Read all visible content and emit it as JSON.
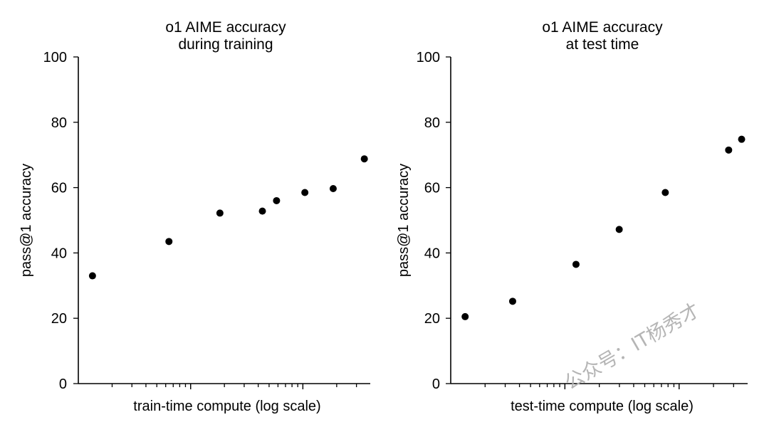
{
  "chart_data": [
    {
      "type": "scatter",
      "title_lines": [
        "o1 AIME accuracy",
        "during training"
      ],
      "xlabel": "train-time compute (log scale)",
      "ylabel": "pass@1 accuracy",
      "x_scale": "log",
      "ylim": [
        0,
        100
      ],
      "yticks": [
        0,
        20,
        40,
        60,
        80,
        100
      ],
      "x_tick_labels_shown": false,
      "grid": false,
      "series": [
        {
          "x": [
            0.05,
            0.32,
            0.5,
            0.65,
            0.7,
            0.8,
            0.9,
            1.01
          ],
          "y": [
            33,
            43.5,
            52.2,
            52.8,
            56,
            58.5,
            59.7,
            68.8
          ],
          "color": "#000000"
        }
      ]
    },
    {
      "type": "scatter",
      "title_lines": [
        "o1 AIME accuracy",
        "at test time"
      ],
      "xlabel": "test-time compute (log scale)",
      "ylabel": "pass@1 accuracy",
      "x_scale": "log",
      "ylim": [
        0,
        100
      ],
      "yticks": [
        0,
        20,
        40,
        60,
        80,
        100
      ],
      "x_tick_labels_shown": false,
      "grid": false,
      "series": [
        {
          "x": [
            0.05,
            0.215,
            0.435,
            0.585,
            0.745,
            0.965,
            1.01
          ],
          "y": [
            20.5,
            25.2,
            36.5,
            47.2,
            58.5,
            71.5,
            74.8
          ],
          "color": "#000000"
        }
      ]
    }
  ],
  "watermark": "公众号：IT杨秀才"
}
